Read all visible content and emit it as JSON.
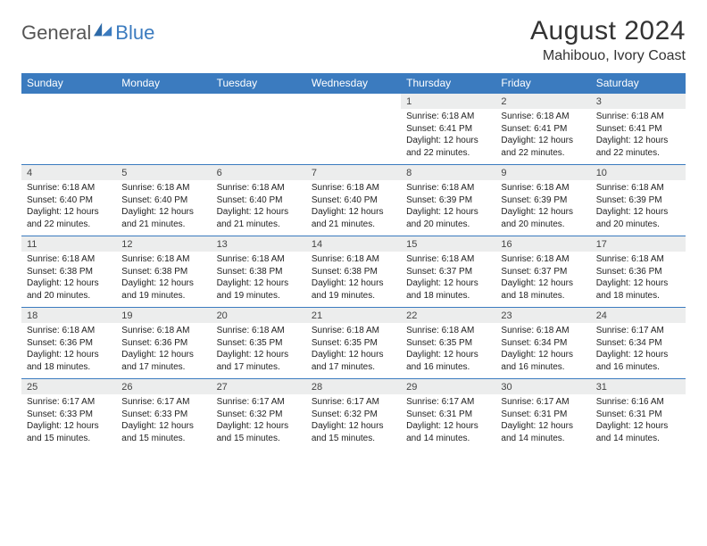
{
  "brand": {
    "part1": "General",
    "part2": "Blue"
  },
  "title": "August 2024",
  "location": "Mahibouo, Ivory Coast",
  "colors": {
    "accent": "#3b7bbf",
    "header_bg": "#3b7bbf",
    "header_text": "#ffffff",
    "daynum_bg": "#eceded",
    "text": "#222222",
    "background": "#ffffff"
  },
  "day_headers": [
    "Sunday",
    "Monday",
    "Tuesday",
    "Wednesday",
    "Thursday",
    "Friday",
    "Saturday"
  ],
  "weeks": [
    [
      null,
      null,
      null,
      null,
      {
        "n": "1",
        "sr": "6:18 AM",
        "ss": "6:41 PM",
        "dl": "12 hours and 22 minutes."
      },
      {
        "n": "2",
        "sr": "6:18 AM",
        "ss": "6:41 PM",
        "dl": "12 hours and 22 minutes."
      },
      {
        "n": "3",
        "sr": "6:18 AM",
        "ss": "6:41 PM",
        "dl": "12 hours and 22 minutes."
      }
    ],
    [
      {
        "n": "4",
        "sr": "6:18 AM",
        "ss": "6:40 PM",
        "dl": "12 hours and 22 minutes."
      },
      {
        "n": "5",
        "sr": "6:18 AM",
        "ss": "6:40 PM",
        "dl": "12 hours and 21 minutes."
      },
      {
        "n": "6",
        "sr": "6:18 AM",
        "ss": "6:40 PM",
        "dl": "12 hours and 21 minutes."
      },
      {
        "n": "7",
        "sr": "6:18 AM",
        "ss": "6:40 PM",
        "dl": "12 hours and 21 minutes."
      },
      {
        "n": "8",
        "sr": "6:18 AM",
        "ss": "6:39 PM",
        "dl": "12 hours and 20 minutes."
      },
      {
        "n": "9",
        "sr": "6:18 AM",
        "ss": "6:39 PM",
        "dl": "12 hours and 20 minutes."
      },
      {
        "n": "10",
        "sr": "6:18 AM",
        "ss": "6:39 PM",
        "dl": "12 hours and 20 minutes."
      }
    ],
    [
      {
        "n": "11",
        "sr": "6:18 AM",
        "ss": "6:38 PM",
        "dl": "12 hours and 20 minutes."
      },
      {
        "n": "12",
        "sr": "6:18 AM",
        "ss": "6:38 PM",
        "dl": "12 hours and 19 minutes."
      },
      {
        "n": "13",
        "sr": "6:18 AM",
        "ss": "6:38 PM",
        "dl": "12 hours and 19 minutes."
      },
      {
        "n": "14",
        "sr": "6:18 AM",
        "ss": "6:38 PM",
        "dl": "12 hours and 19 minutes."
      },
      {
        "n": "15",
        "sr": "6:18 AM",
        "ss": "6:37 PM",
        "dl": "12 hours and 18 minutes."
      },
      {
        "n": "16",
        "sr": "6:18 AM",
        "ss": "6:37 PM",
        "dl": "12 hours and 18 minutes."
      },
      {
        "n": "17",
        "sr": "6:18 AM",
        "ss": "6:36 PM",
        "dl": "12 hours and 18 minutes."
      }
    ],
    [
      {
        "n": "18",
        "sr": "6:18 AM",
        "ss": "6:36 PM",
        "dl": "12 hours and 18 minutes."
      },
      {
        "n": "19",
        "sr": "6:18 AM",
        "ss": "6:36 PM",
        "dl": "12 hours and 17 minutes."
      },
      {
        "n": "20",
        "sr": "6:18 AM",
        "ss": "6:35 PM",
        "dl": "12 hours and 17 minutes."
      },
      {
        "n": "21",
        "sr": "6:18 AM",
        "ss": "6:35 PM",
        "dl": "12 hours and 17 minutes."
      },
      {
        "n": "22",
        "sr": "6:18 AM",
        "ss": "6:35 PM",
        "dl": "12 hours and 16 minutes."
      },
      {
        "n": "23",
        "sr": "6:18 AM",
        "ss": "6:34 PM",
        "dl": "12 hours and 16 minutes."
      },
      {
        "n": "24",
        "sr": "6:17 AM",
        "ss": "6:34 PM",
        "dl": "12 hours and 16 minutes."
      }
    ],
    [
      {
        "n": "25",
        "sr": "6:17 AM",
        "ss": "6:33 PM",
        "dl": "12 hours and 15 minutes."
      },
      {
        "n": "26",
        "sr": "6:17 AM",
        "ss": "6:33 PM",
        "dl": "12 hours and 15 minutes."
      },
      {
        "n": "27",
        "sr": "6:17 AM",
        "ss": "6:32 PM",
        "dl": "12 hours and 15 minutes."
      },
      {
        "n": "28",
        "sr": "6:17 AM",
        "ss": "6:32 PM",
        "dl": "12 hours and 15 minutes."
      },
      {
        "n": "29",
        "sr": "6:17 AM",
        "ss": "6:31 PM",
        "dl": "12 hours and 14 minutes."
      },
      {
        "n": "30",
        "sr": "6:17 AM",
        "ss": "6:31 PM",
        "dl": "12 hours and 14 minutes."
      },
      {
        "n": "31",
        "sr": "6:16 AM",
        "ss": "6:31 PM",
        "dl": "12 hours and 14 minutes."
      }
    ]
  ],
  "labels": {
    "sunrise": "Sunrise:",
    "sunset": "Sunset:",
    "daylight": "Daylight:"
  }
}
